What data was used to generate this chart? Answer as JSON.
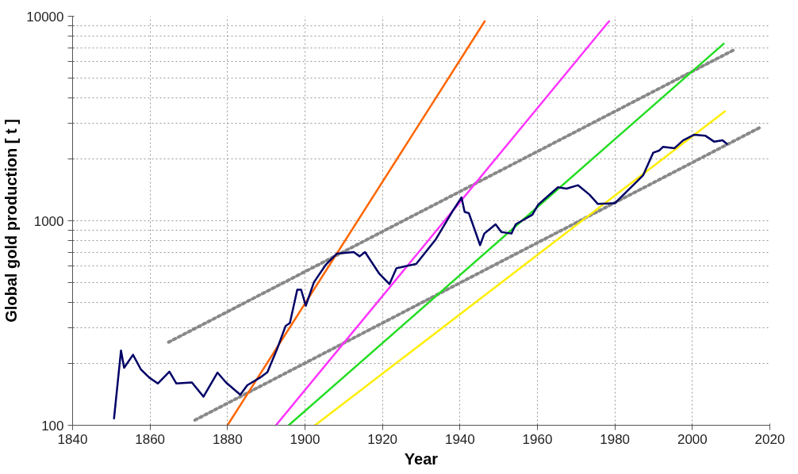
{
  "chart_data": {
    "type": "line",
    "xlabel": "Year",
    "ylabel": "Global gold production [ t ]",
    "log": "y",
    "grid": true,
    "marker": "none",
    "xlim": [
      1840,
      2020
    ],
    "xticks": [
      1840,
      1860,
      1880,
      1900,
      1920,
      1940,
      1960,
      1980,
      2000,
      2020
    ],
    "ylim": [
      100,
      10000
    ],
    "yticks": [
      100,
      {
        "value": 200,
        "label": null
      },
      {
        "value": 300,
        "label": null
      },
      {
        "value": 400,
        "label": null
      },
      {
        "value": 500,
        "label": null
      },
      {
        "value": 600,
        "label": null
      },
      {
        "value": 700,
        "label": null
      },
      {
        "value": 800,
        "label": null
      },
      {
        "value": 900,
        "label": null
      },
      1000,
      {
        "value": 2000,
        "label": null
      },
      {
        "value": 3000,
        "label": null
      },
      {
        "value": 4000,
        "label": null
      },
      {
        "value": 5000,
        "label": null
      },
      {
        "value": 6000,
        "label": null
      },
      {
        "value": 7000,
        "label": null
      },
      {
        "value": 8000,
        "label": null
      },
      {
        "value": 9000,
        "label": null
      },
      10000
    ],
    "series": [
      {
        "color": "#888888",
        "line_style": "dotted",
        "x": [
          1864.8,
          2011.0
        ],
        "values": [
          255,
          6890
        ]
      },
      {
        "color": "#888888",
        "line_style": "dotted",
        "x": [
          1871.6,
          2017.8
        ],
        "values": [
          106,
          2880
        ]
      },
      {
        "color": "#ff6600",
        "line_style": "solid",
        "x": [
          1880,
          1946.4
        ],
        "values": [
          100,
          9460
        ]
      },
      {
        "color": "#ff33ff",
        "line_style": "solid",
        "x": [
          1892.5,
          1978.5
        ],
        "values": [
          100,
          9460
        ]
      },
      {
        "color": "#22dd22",
        "line_style": "solid",
        "x": [
          1895.8,
          2008.1
        ],
        "values": [
          100,
          7340
        ]
      },
      {
        "color": "#ffee00",
        "line_style": "solid",
        "x": [
          1902.6,
          2008.4
        ],
        "values": [
          100,
          3430
        ]
      },
      {
        "color": "#000066",
        "line_style": "solid",
        "x": [
          1850.7,
          1852.5,
          1853.3,
          1855.6,
          1857.6,
          1859.8,
          1862,
          1865,
          1866.8,
          1870.8,
          1873.8,
          1877.4,
          1879.6,
          1883.3,
          1885.1,
          1888.4,
          1890.3,
          1892.8,
          1895,
          1896.1,
          1898,
          1899,
          1900.2,
          1902.3,
          1905.3,
          1908.2,
          1912.6,
          1914.1,
          1915.5,
          1919.2,
          1921.8,
          1923.6,
          1928.7,
          1933.8,
          1938.2,
          1940.4,
          1941.2,
          1942.3,
          1945.2,
          1946.3,
          1949.2,
          1950.7,
          1953.3,
          1954.4,
          1958.7,
          1960.2,
          1965.3,
          1967.5,
          1970.5,
          1973.4,
          1975.6,
          1980,
          1987.3,
          1989.9,
          1991.4,
          1992.4,
          1995.4,
          1997.6,
          2000.5,
          2003.4,
          2005.6,
          2007.8,
          2008.9
        ],
        "values": [
          108,
          232,
          191,
          221,
          188,
          171,
          160,
          183,
          160,
          162,
          138,
          181,
          162,
          141,
          157,
          171,
          182,
          236,
          306,
          316,
          460,
          460,
          384,
          500,
          607,
          690,
          703,
          670,
          703,
          550,
          490,
          586,
          615,
          813,
          1122,
          1300,
          1106,
          1089,
          760,
          866,
          961,
          881,
          866,
          961,
          1071,
          1199,
          1458,
          1436,
          1492,
          1344,
          1208,
          1219,
          1670,
          2153,
          2202,
          2297,
          2264,
          2473,
          2636,
          2602,
          2438,
          2473,
          2377
        ]
      }
    ]
  }
}
